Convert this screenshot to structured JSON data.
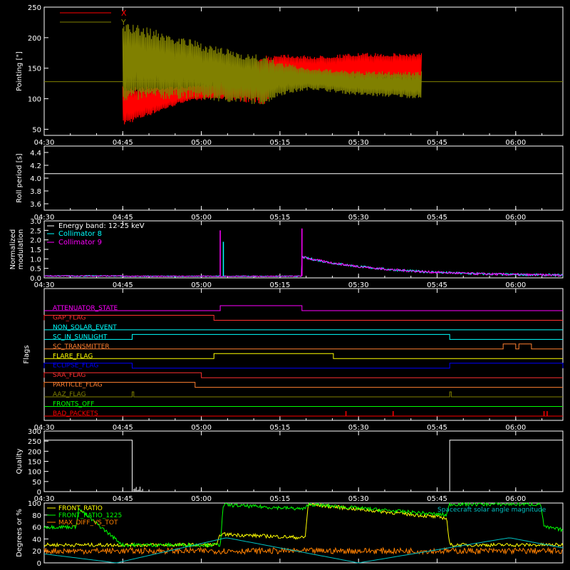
{
  "chart_data": [
    {
      "type": "line",
      "ylabel": "Pointing [\"]",
      "ylim": [
        40,
        250
      ],
      "yticks": [
        50,
        100,
        150,
        200,
        250
      ],
      "x_tick_labels": [
        "04:30",
        "04:45",
        "05:00",
        "05:15",
        "05:30",
        "05:45",
        "06:00"
      ],
      "x_range_hours": [
        4.5,
        6.15
      ],
      "legend_position": "top-left",
      "reference_line": 128,
      "series": [
        {
          "name": "X",
          "color": "#ff0000",
          "envelope_hours": [
            4.75,
            4.95,
            5.05,
            5.2,
            5.25,
            5.35,
            5.5,
            5.7
          ],
          "envelope_low": [
            55,
            95,
            100,
            90,
            125,
            130,
            130,
            130
          ],
          "envelope_high": [
            120,
            120,
            125,
            170,
            175,
            170,
            175,
            175
          ]
        },
        {
          "name": "Y",
          "color": "#808000",
          "envelope_hours": [
            4.75,
            4.95,
            5.05,
            5.2,
            5.25,
            5.35,
            5.5,
            5.7
          ],
          "envelope_low": [
            95,
            100,
            95,
            90,
            105,
            115,
            105,
            100
          ],
          "envelope_high": [
            228,
            200,
            185,
            170,
            160,
            150,
            145,
            145
          ]
        }
      ]
    },
    {
      "type": "line",
      "ylabel": "Roll period [s]",
      "ylim": [
        3.5,
        4.5
      ],
      "yticks": [
        3.6,
        3.8,
        4.0,
        4.2,
        4.4
      ],
      "ytick_labels": [
        "3.6",
        "3.8",
        "4.0",
        "4.2",
        "4.4"
      ],
      "x_tick_labels": [
        "04:30",
        "04:45",
        "05:00",
        "05:15",
        "05:30",
        "05:45",
        "06:00"
      ],
      "series": [
        {
          "color": "#ffffff",
          "constant": 4.07
        }
      ]
    },
    {
      "type": "line",
      "ylabel_lines": [
        "Normalized",
        "modulation"
      ],
      "ylim": [
        0,
        3
      ],
      "yticks": [
        0,
        0.5,
        1,
        1.5,
        2,
        2.5,
        3
      ],
      "ytick_labels": [
        "0.0",
        "0.5",
        "1.0",
        "1.5",
        "2.0",
        "2.5",
        "3.0"
      ],
      "x_tick_labels": [
        "04:30",
        "04:45",
        "05:00",
        "05:15",
        "05:30",
        "05:45",
        "06:00"
      ],
      "annotation": "Energy band: 12-25 keV",
      "series": [
        {
          "name": "Collimator 8",
          "color": "#00ffff"
        },
        {
          "name": "Collimator 9",
          "color": "#ff00ff"
        }
      ],
      "spikes": [
        {
          "hour": 5.06,
          "value": 2.5
        },
        {
          "hour": 5.07,
          "value": 1.9
        },
        {
          "hour": 5.32,
          "value": 2.6
        }
      ],
      "decay": {
        "start_hour": 5.32,
        "start_value": 1.1,
        "end_hour": 6.1,
        "end_value": 0.1
      }
    },
    {
      "type": "line",
      "ylabel": "Flags",
      "x_tick_labels": [
        "04:30",
        "04:45",
        "05:00",
        "05:15",
        "05:30",
        "05:45",
        "06:00"
      ],
      "flags": [
        {
          "name": "ATTENUATOR_STATE",
          "color": "#ff00ff",
          "high": [
            [
              5.06,
              5.32
            ]
          ]
        },
        {
          "name": "GAP_FLAG",
          "color": "#ff3030",
          "high": [
            [
              4.5,
              5.04
            ]
          ]
        },
        {
          "name": "NON_SOLAR_EVENT",
          "color": "#00ffff",
          "high": []
        },
        {
          "name": "SC_IN_SUNLIGHT",
          "color": "#00ffff",
          "high": [
            [
              4.78,
              5.79
            ]
          ]
        },
        {
          "name": "SC_TRANSMITTER",
          "color": "#ff8030",
          "high": [
            [
              5.96,
              6.0
            ],
            [
              6.01,
              6.05
            ]
          ]
        },
        {
          "name": "FLARE_FLAG",
          "color": "#ffff00",
          "high": [
            [
              5.04,
              5.42
            ]
          ]
        },
        {
          "name": "ECLIPSE_FLAG",
          "color": "#0000ff",
          "high": [
            [
              4.5,
              4.78
            ],
            [
              5.79,
              6.15
            ]
          ]
        },
        {
          "name": "SAA_FLAG",
          "color": "#ff3030",
          "high": [
            [
              4.5,
              5.0
            ]
          ]
        },
        {
          "name": "PARTICLE_FLAG",
          "color": "#ff8030",
          "high": [
            [
              4.5,
              4.98
            ]
          ]
        },
        {
          "name": "AAZ_FLAG",
          "color": "#808000",
          "high": [
            [
              4.78,
              4.785
            ],
            [
              5.79,
              5.795
            ]
          ]
        },
        {
          "name": "FRONTS_OFF",
          "color": "#00ff00",
          "high": []
        },
        {
          "name": "BAD_PACKETS",
          "color": "#ff0000",
          "high": [],
          "ticks": [
            5.46,
            5.61,
            6.09,
            6.1
          ]
        }
      ]
    },
    {
      "type": "line",
      "ylabel": "Quality",
      "ylim": [
        0,
        300
      ],
      "yticks": [
        0,
        50,
        100,
        150,
        200,
        250,
        300
      ],
      "x_tick_labels": [
        "04:30",
        "04:45",
        "05:00",
        "05:15",
        "05:30",
        "05:45",
        "06:00"
      ],
      "series": [
        {
          "color": "#ffffff",
          "x_hours": [
            4.5,
            4.78,
            4.78,
            5.79,
            5.79,
            6.15
          ],
          "values": [
            255,
            255,
            0,
            0,
            255,
            255
          ]
        }
      ]
    },
    {
      "type": "line",
      "ylabel": "Degrees or %",
      "ylim": [
        0,
        100
      ],
      "yticks": [
        0,
        20,
        40,
        60,
        80,
        100
      ],
      "x_tick_labels": [
        "04:30",
        "04:45",
        "05:00",
        "05:15",
        "05:30",
        "05:45",
        "06:00"
      ],
      "legend_position": "top-left",
      "series": [
        {
          "name": "FRONT_RATIO",
          "color": "#ffff00",
          "x_hours": [
            4.5,
            4.75,
            5.05,
            5.06,
            5.33,
            5.34,
            5.78,
            5.79,
            6.15
          ],
          "values": [
            30,
            30,
            30,
            48,
            42,
            98,
            75,
            30,
            30
          ]
        },
        {
          "name": "FRONT_RATIO_1225",
          "color": "#00ff00",
          "x_hours": [
            4.5,
            4.6,
            4.61,
            4.75,
            5.06,
            5.07,
            5.33,
            5.34,
            5.78,
            5.79,
            6.08,
            6.09,
            6.15
          ],
          "values": [
            60,
            60,
            90,
            30,
            30,
            97,
            90,
            98,
            80,
            98,
            98,
            60,
            55
          ]
        },
        {
          "name": "MAX_DIFF_VS_TOT",
          "color": "#ff8000",
          "x_hours": [
            4.5,
            4.75,
            5.06,
            5.33,
            5.78,
            6.15
          ],
          "values": [
            20,
            20,
            20,
            20,
            20,
            20
          ]
        },
        {
          "name": "Spacecraft solar angle magnitude",
          "color": "#00c0c0",
          "x_hours": [
            4.5,
            4.73,
            5.08,
            5.5,
            5.98,
            6.15
          ],
          "values": [
            15,
            0,
            42,
            0,
            42,
            25
          ]
        }
      ]
    }
  ]
}
